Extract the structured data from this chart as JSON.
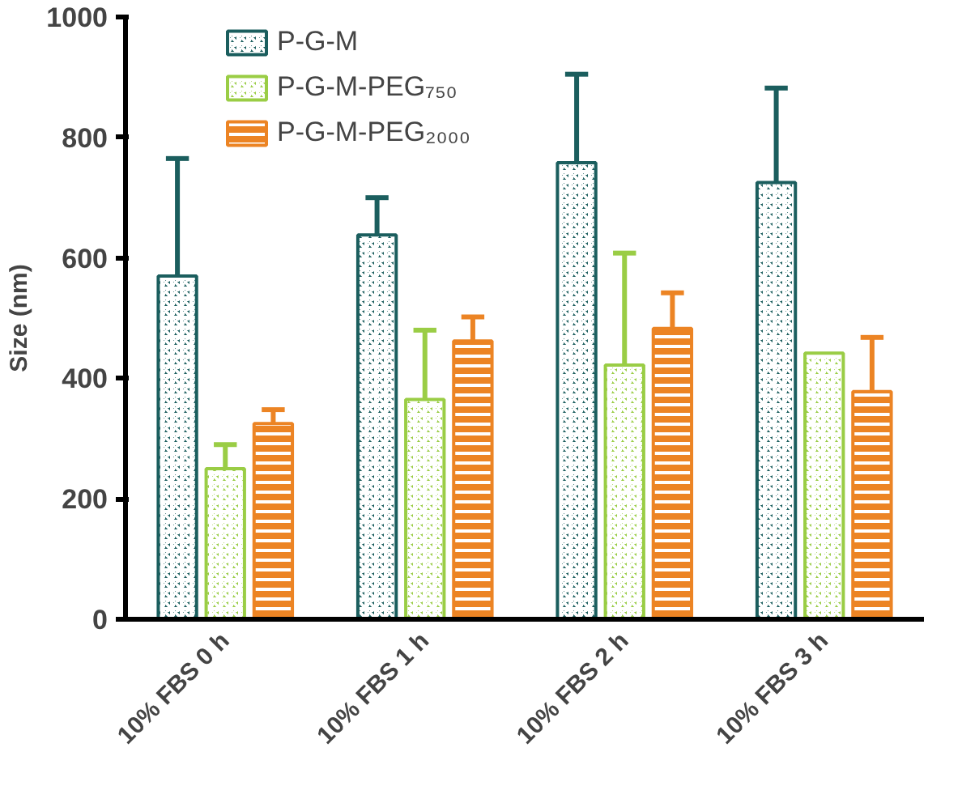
{
  "chart_data": {
    "type": "bar",
    "ylabel": "Size (nm)",
    "categories": [
      "10% FBS 0 h",
      "10% FBS 1 h",
      "10% FBS 2 h",
      "10% FBS 3 h"
    ],
    "series": [
      {
        "name": "P-G-M",
        "color": "#1b5e5e",
        "values": [
          570,
          638,
          758,
          725
        ],
        "errors": [
          [
            570,
            765
          ],
          [
            638,
            700
          ],
          [
            758,
            905
          ],
          [
            725,
            882
          ]
        ]
      },
      {
        "name": "P-G-M-PEG₇₅₀",
        "color": "#9acd45",
        "values": [
          250,
          365,
          422,
          442
        ],
        "errors": [
          [
            250,
            290
          ],
          [
            365,
            480
          ],
          [
            422,
            608
          ],
          null
        ]
      },
      {
        "name": "P-G-M-PEG₂₀₀₀",
        "color": "#ec8424",
        "values": [
          325,
          462,
          483,
          378
        ],
        "errors": [
          [
            325,
            348
          ],
          [
            462,
            502
          ],
          [
            483,
            542
          ],
          [
            378,
            468
          ]
        ]
      }
    ],
    "ylim": [
      0,
      1000
    ],
    "yticks": [
      0,
      200,
      400,
      600,
      800,
      1000
    ],
    "grid": false,
    "legend": "top"
  }
}
